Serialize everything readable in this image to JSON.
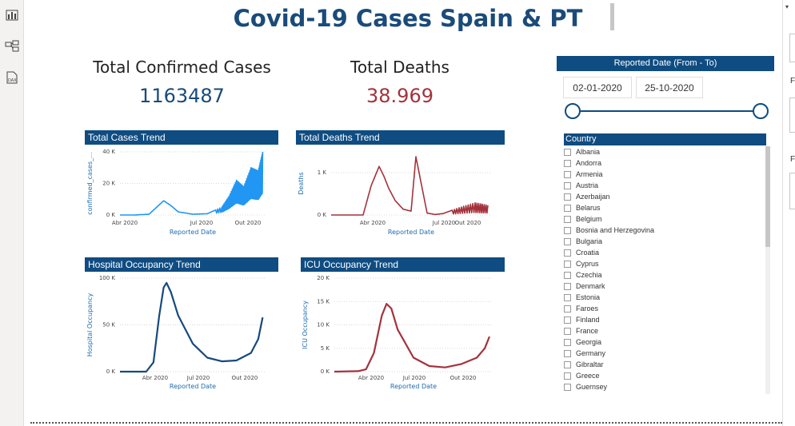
{
  "report": {
    "title": "Covid-19 Cases Spain & PT"
  },
  "kpis": {
    "confirmed_label": "Total Confirmed Cases",
    "confirmed_value": "1163487",
    "deaths_label": "Total Deaths",
    "deaths_value": "38.969"
  },
  "colors": {
    "header_blue": "#0f4c81",
    "title_blue": "#1a4b7a",
    "cases_line": "#2196f3",
    "deaths_line": "#a4323c",
    "hospital_line": "#17497e",
    "icu_line": "#a4323c"
  },
  "left_rail": {
    "icons": [
      "report-view-icon",
      "data-model-icon",
      "dax-query-icon"
    ],
    "dax_label": "DAX"
  },
  "right_edge": {
    "letters": [
      "F",
      "F"
    ]
  },
  "slicer": {
    "header": "Reported Date (From - To)",
    "from": "02-01-2020",
    "to": "25-10-2020"
  },
  "country_slicer": {
    "header": "Country",
    "items": [
      "Albania",
      "Andorra",
      "Armenia",
      "Austria",
      "Azerbaijan",
      "Belarus",
      "Belgium",
      "Bosnia and Herzegovina",
      "Bulgaria",
      "Croatia",
      "Cyprus",
      "Czechia",
      "Denmark",
      "Estonia",
      "Faroes",
      "Finland",
      "France",
      "Georgia",
      "Germany",
      "Gibraltar",
      "Greece",
      "Guernsey"
    ]
  },
  "chart_data": [
    {
      "type": "line",
      "title": "Total Cases Trend",
      "xlabel": "Reported Date",
      "ylabel": "confirmed_cases_...",
      "x_ticks": [
        "Abr 2020",
        "Jul 2020",
        "Out 2020"
      ],
      "y_ticks": [
        "0 K",
        "20 K",
        "40 K"
      ],
      "ylim": [
        0,
        40000
      ],
      "x_months": [
        0,
        1,
        2,
        3,
        3.5,
        4,
        5,
        6,
        7,
        7.5,
        8,
        8.5,
        9,
        9.5,
        9.8
      ],
      "values": [
        0,
        0,
        500,
        9000,
        6000,
        2000,
        500,
        800,
        5000,
        12000,
        22000,
        18000,
        30000,
        28000,
        40000
      ],
      "color": "#2196f3",
      "grid": true
    },
    {
      "type": "line",
      "title": "Total Deaths Trend",
      "xlabel": "Reported Date",
      "ylabel": "Deaths",
      "x_ticks": [
        "Abr 2020",
        "Jul 2020",
        "Out 2020"
      ],
      "y_ticks": [
        "0 K",
        "1 K"
      ],
      "ylim": [
        0,
        1300
      ],
      "x_months": [
        0,
        2,
        2.5,
        3,
        3.3,
        3.6,
        4,
        4.5,
        5,
        5.3,
        6,
        6.5,
        7,
        8,
        9,
        9.8
      ],
      "values": [
        0,
        0,
        600,
        1000,
        800,
        550,
        300,
        120,
        80,
        1200,
        40,
        10,
        30,
        150,
        250,
        200
      ],
      "color": "#a4323c",
      "grid": true
    },
    {
      "type": "line",
      "title": "Hospital Occupancy Trend",
      "xlabel": "Reported Date",
      "ylabel": "Hospital Occupancy",
      "x_ticks": [
        "Abr 2020",
        "Jul 2020",
        "Out 2020"
      ],
      "y_ticks": [
        "0 K",
        "50 K",
        "100 K"
      ],
      "ylim": [
        0,
        100000
      ],
      "x_months": [
        0,
        1.8,
        2.3,
        2.7,
        3.0,
        3.2,
        3.5,
        4,
        5,
        6,
        7,
        8,
        9,
        9.5,
        9.8
      ],
      "values": [
        0,
        0,
        10000,
        60000,
        90000,
        95000,
        85000,
        60000,
        30000,
        15000,
        11000,
        12000,
        20000,
        35000,
        58000
      ],
      "color": "#17497e",
      "grid": true
    },
    {
      "type": "line",
      "title": "ICU Occupancy Trend",
      "xlabel": "Reported Date",
      "ylabel": "ICU Occupancy",
      "x_ticks": [
        "Abr 2020",
        "Jul 2020",
        "Out 2020"
      ],
      "y_ticks": [
        "0 K",
        "5 K",
        "10 K",
        "15 K",
        "20 K"
      ],
      "ylim": [
        0,
        20000
      ],
      "x_months": [
        0,
        1.5,
        2,
        2.5,
        3,
        3.3,
        3.6,
        4,
        5,
        6,
        7,
        8,
        9,
        9.5,
        9.8
      ],
      "values": [
        0,
        100,
        500,
        4000,
        12000,
        14500,
        13500,
        9000,
        3000,
        1200,
        900,
        1600,
        3000,
        5000,
        7500
      ],
      "color": "#a4323c",
      "grid": true
    }
  ]
}
